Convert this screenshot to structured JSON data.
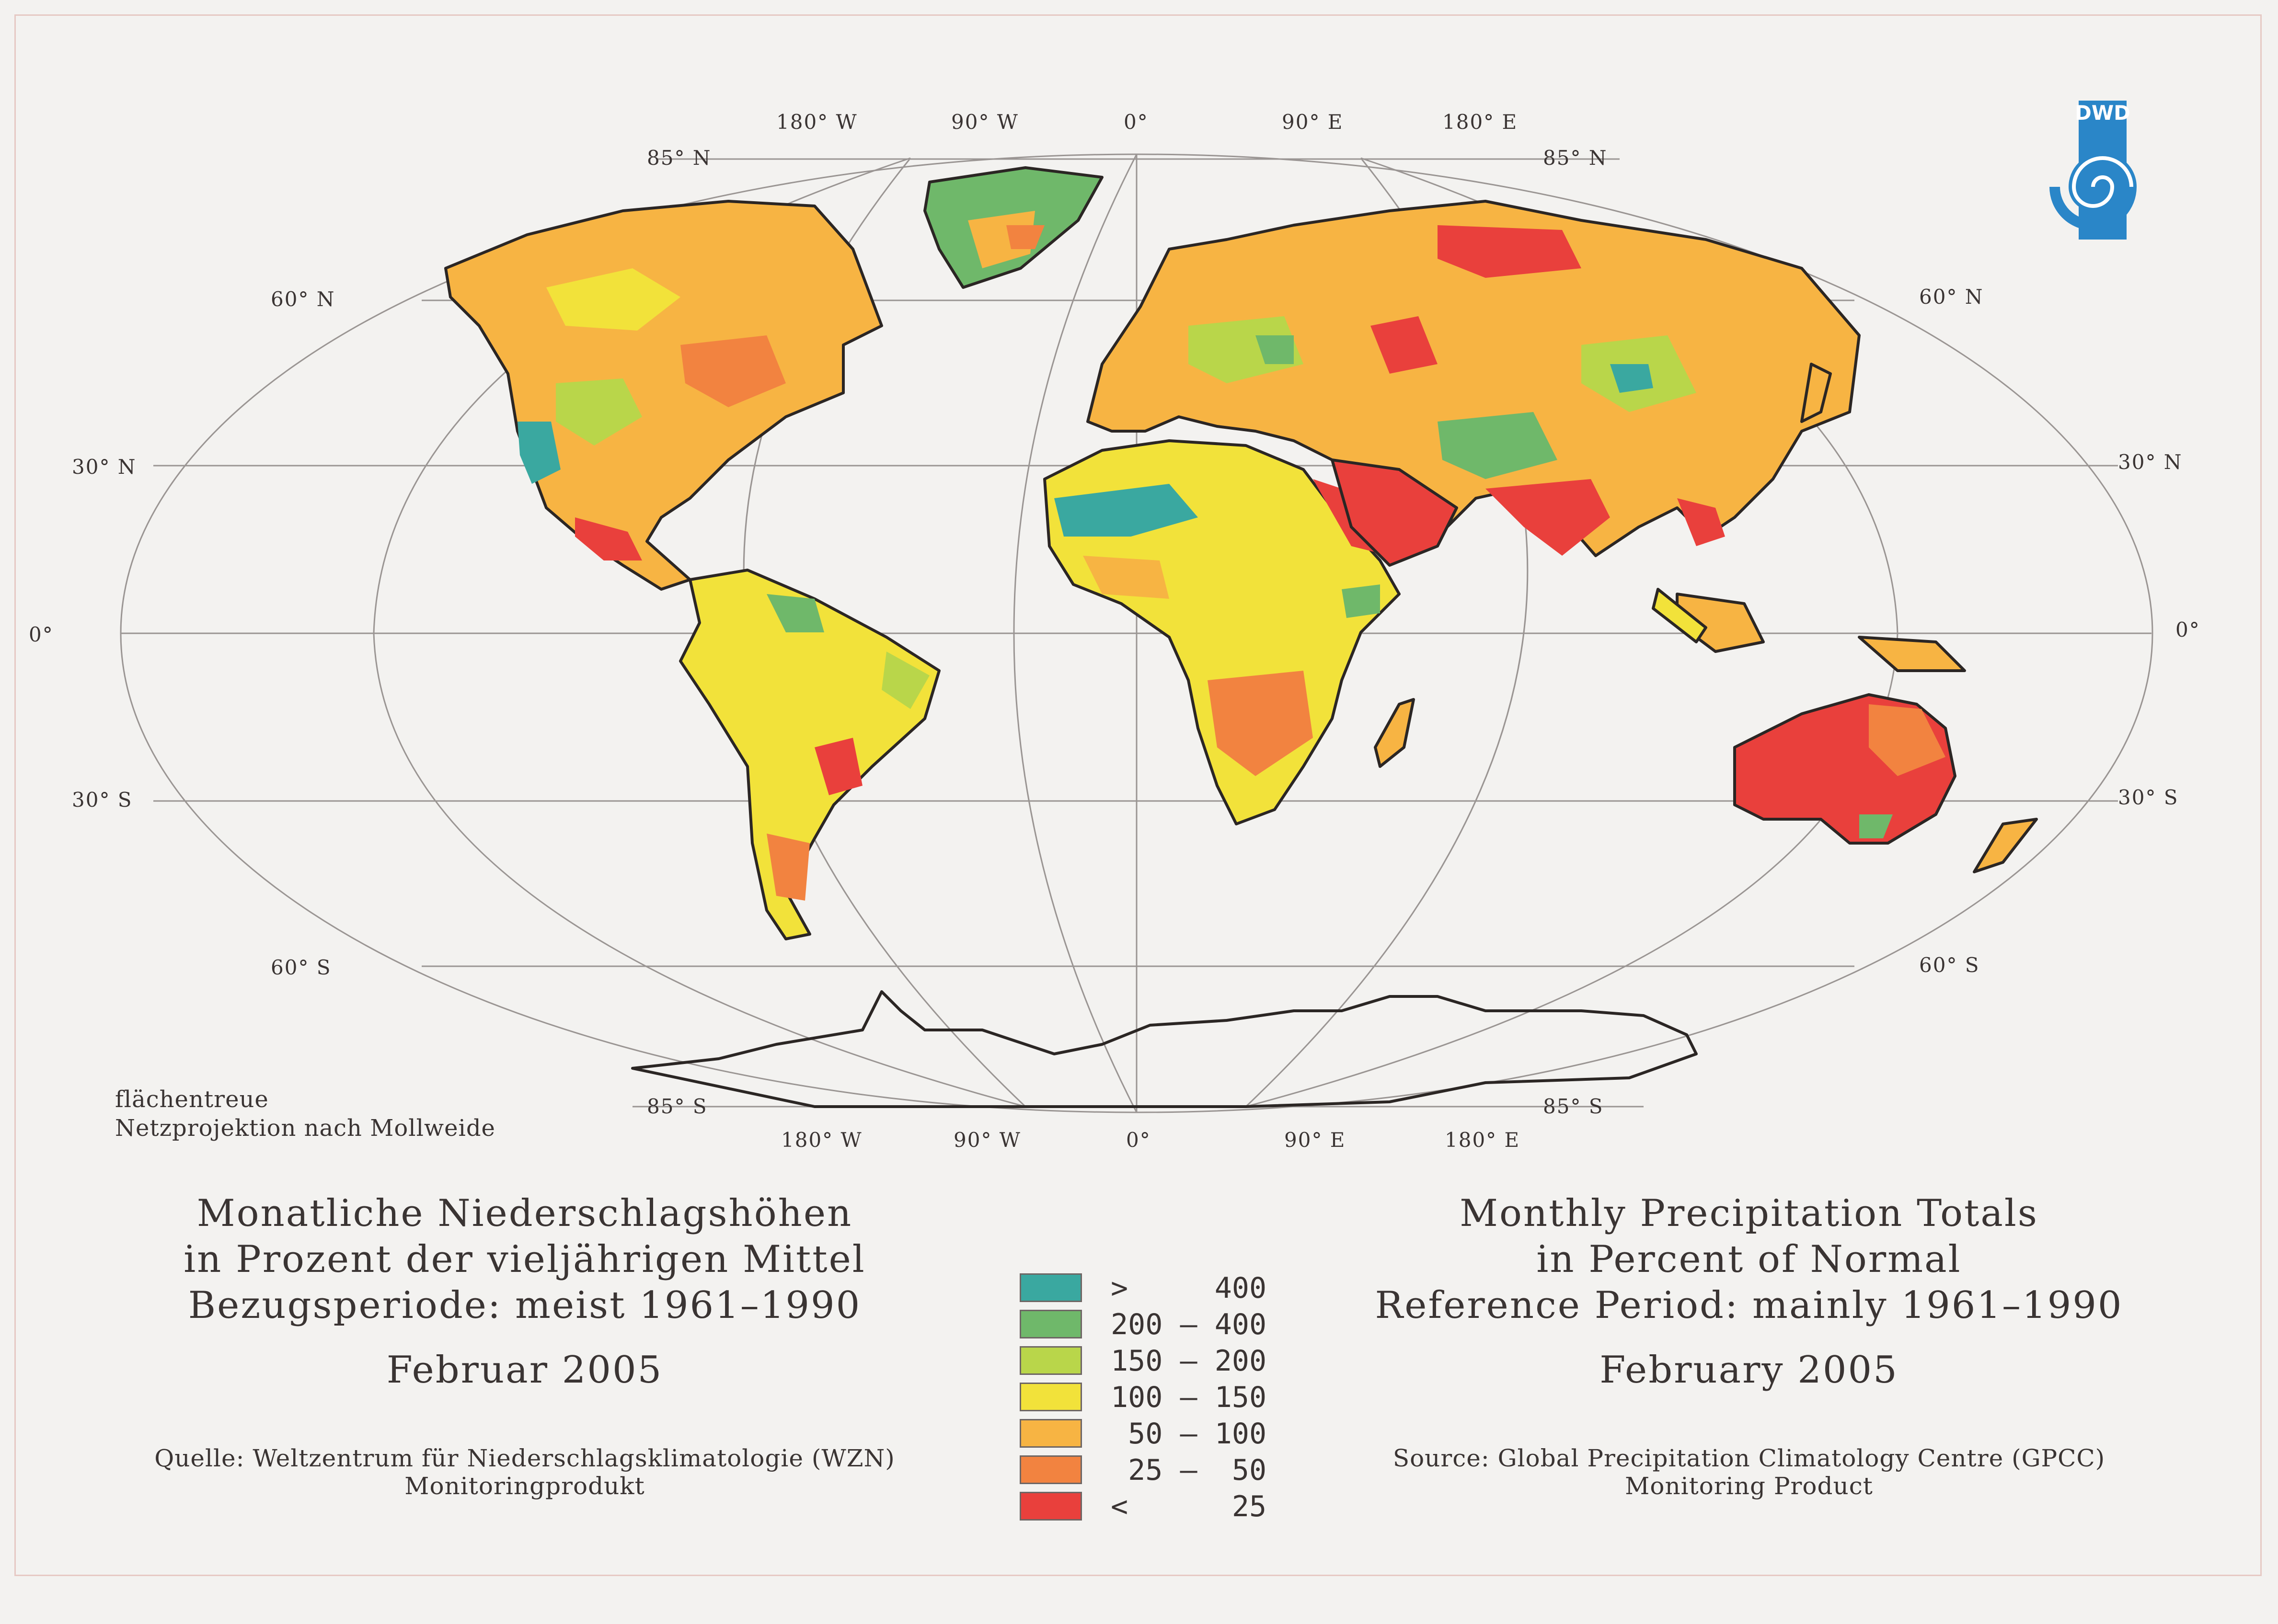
{
  "map": {
    "lon_labels_top": [
      "180° W",
      "90° W",
      "0°",
      "90° E",
      "180° E"
    ],
    "lon_labels_bottom": [
      "180° W",
      "90° W",
      "0°",
      "90° E",
      "180° E"
    ],
    "lat_labels_left": [
      "85° N",
      "60° N",
      "30° N",
      "0°",
      "30° S",
      "60° S",
      "85° S"
    ],
    "lat_labels_right": [
      "85° N",
      "60° N",
      "30° N",
      "0°",
      "30° S",
      "60° S",
      "85° S"
    ],
    "projection_note_line1": "flächentreue",
    "projection_note_line2": "Netzprojektion nach Mollweide",
    "colors": {
      "gt400": "#3aa8a0",
      "200_400": "#6fb86a",
      "150_200": "#b9d64a",
      "100_150": "#f2e23a",
      "50_100": "#f7b443",
      "25_50": "#f28340",
      "lt25": "#e9403c"
    }
  },
  "title_de": {
    "line1": "Monatliche Niederschlagshöhen",
    "line2": "in Prozent der vieljährigen Mittel",
    "line3": "Bezugsperiode: meist 1961–1990",
    "date": "Februar 2005",
    "source_line1": "Quelle: Weltzentrum für Niederschlagsklimatologie (WZN)",
    "source_line2": "Monitoringprodukt"
  },
  "title_en": {
    "line1": "Monthly Precipitation Totals",
    "line2": "in Percent of Normal",
    "line3": "Reference Period: mainly 1961–1990",
    "date": "February 2005",
    "source_line1": "Source: Global Precipitation Climatology Centre (GPCC)",
    "source_line2": "Monitoring Product"
  },
  "legend": [
    {
      "label": ">     400",
      "color": "#3aa8a0"
    },
    {
      "label": "200 – 400",
      "color": "#6fb86a"
    },
    {
      "label": "150 – 200",
      "color": "#b9d64a"
    },
    {
      "label": "100 – 150",
      "color": "#f2e23a"
    },
    {
      "label": " 50 – 100",
      "color": "#f7b443"
    },
    {
      "label": " 25 –  50",
      "color": "#f28340"
    },
    {
      "label": "<      25",
      "color": "#e9403c"
    }
  ],
  "logo": {
    "text": "DWD",
    "icon": "dwd-spiral-logo"
  }
}
